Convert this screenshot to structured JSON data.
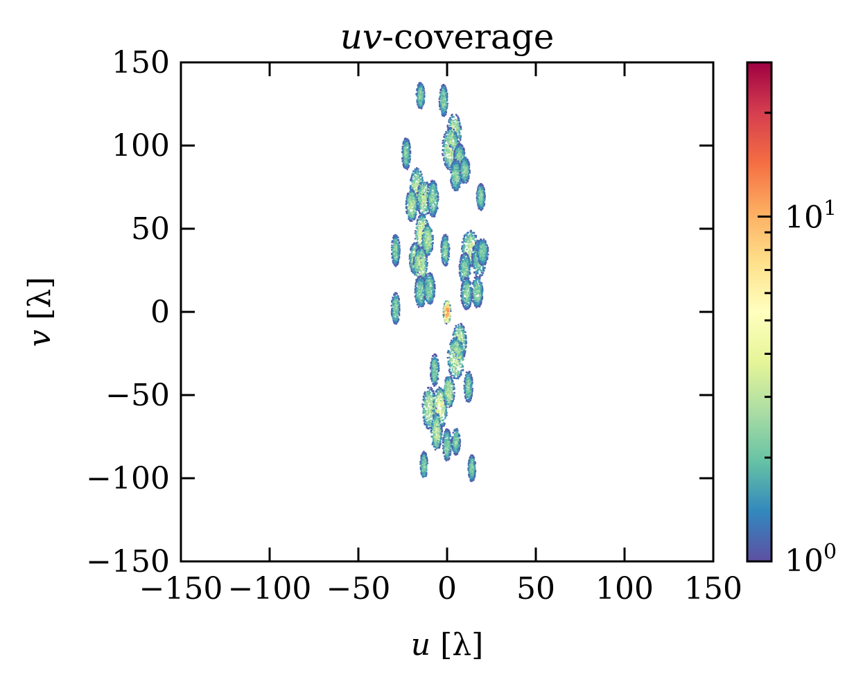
{
  "chart_data": {
    "type": "heatmap",
    "title_italic": "uv",
    "title_rest": "-coverage",
    "xlabel_var": "u",
    "xlabel_unit": "[λ]",
    "ylabel_var": "v",
    "ylabel_unit": "[λ]",
    "xlim": [
      -150,
      150
    ],
    "ylim": [
      -150,
      150
    ],
    "x_ticks": [
      -150,
      -100,
      -50,
      0,
      50,
      100,
      150
    ],
    "y_ticks": [
      -150,
      -100,
      -50,
      0,
      50,
      100,
      150
    ],
    "x_tick_labels": [
      "−150",
      "−100",
      "−50",
      "0",
      "50",
      "100",
      "150"
    ],
    "y_tick_labels": [
      "−150",
      "−100",
      "−50",
      "0",
      "50",
      "100",
      "150"
    ],
    "colormap": "Spectral_r",
    "colorbar": {
      "scale": "log",
      "range": [
        1,
        28
      ],
      "ticks": [
        {
          "base": "10",
          "exp": "0",
          "value": 1
        },
        {
          "base": "10",
          "exp": "1",
          "value": 10
        }
      ]
    },
    "clusters": [
      {
        "u": -15,
        "v": 130,
        "su": 1.5,
        "sv": 5,
        "peak": 3
      },
      {
        "u": -2,
        "v": 127,
        "su": 1.5,
        "sv": 6,
        "peak": 3
      },
      {
        "u": 4,
        "v": 108,
        "su": 2.5,
        "sv": 7,
        "peak": 4
      },
      {
        "u": 2,
        "v": 98,
        "su": 3,
        "sv": 8,
        "peak": 4
      },
      {
        "u": 7,
        "v": 93,
        "su": 2,
        "sv": 5,
        "peak": 3
      },
      {
        "u": 5,
        "v": 82,
        "su": 2,
        "sv": 6,
        "peak": 3
      },
      {
        "u": 10,
        "v": 85,
        "su": 1.8,
        "sv": 5,
        "peak": 3
      },
      {
        "u": -23,
        "v": 95,
        "su": 1.5,
        "sv": 6,
        "peak": 3
      },
      {
        "u": -17,
        "v": 74,
        "su": 2.5,
        "sv": 8,
        "peak": 4
      },
      {
        "u": -20,
        "v": 64,
        "su": 2,
        "sv": 6,
        "peak": 4
      },
      {
        "u": -13,
        "v": 68,
        "su": 2.5,
        "sv": 7,
        "peak": 4
      },
      {
        "u": -8,
        "v": 68,
        "su": 2,
        "sv": 7,
        "peak": 3
      },
      {
        "u": 19,
        "v": 69,
        "su": 1.5,
        "sv": 5,
        "peak": 3
      },
      {
        "u": -14,
        "v": 46,
        "su": 2.5,
        "sv": 8,
        "peak": 5
      },
      {
        "u": -11,
        "v": 43,
        "su": 2,
        "sv": 6,
        "peak": 4
      },
      {
        "u": -18,
        "v": 32,
        "su": 2,
        "sv": 6,
        "peak": 4
      },
      {
        "u": -15,
        "v": 28,
        "su": 2.5,
        "sv": 7,
        "peak": 4
      },
      {
        "u": -29,
        "v": 37,
        "su": 1.5,
        "sv": 6,
        "peak": 3
      },
      {
        "u": -1,
        "v": 37,
        "su": 1.5,
        "sv": 6,
        "peak": 3
      },
      {
        "u": 13,
        "v": 38,
        "su": 3,
        "sv": 7,
        "peak": 4
      },
      {
        "u": 18,
        "v": 32,
        "su": 2.5,
        "sv": 7,
        "peak": 3
      },
      {
        "u": 10,
        "v": 26,
        "su": 2,
        "sv": 6,
        "peak": 3
      },
      {
        "u": 20,
        "v": 36,
        "su": 2,
        "sv": 5,
        "peak": 3
      },
      {
        "u": 17,
        "v": 12,
        "su": 2,
        "sv": 6,
        "peak": 3
      },
      {
        "u": 11,
        "v": 11,
        "su": 2,
        "sv": 6,
        "peak": 3
      },
      {
        "u": -15,
        "v": 12,
        "su": 2,
        "sv": 6,
        "peak": 3
      },
      {
        "u": -10,
        "v": 14,
        "su": 2,
        "sv": 6,
        "peak": 3
      },
      {
        "u": -29,
        "v": 2,
        "su": 1.5,
        "sv": 6,
        "peak": 3
      },
      {
        "u": 0,
        "v": 0,
        "su": 1.3,
        "sv": 4.5,
        "peak": 16
      },
      {
        "u": 7,
        "v": -18,
        "su": 2.5,
        "sv": 7,
        "peak": 4
      },
      {
        "u": 5,
        "v": -28,
        "su": 3,
        "sv": 8,
        "peak": 4
      },
      {
        "u": 12,
        "v": -45,
        "su": 1.5,
        "sv": 6,
        "peak": 3
      },
      {
        "u": -7,
        "v": -35,
        "su": 1.5,
        "sv": 6,
        "peak": 3
      },
      {
        "u": -10,
        "v": -58,
        "su": 2.5,
        "sv": 8,
        "peak": 4
      },
      {
        "u": -4,
        "v": -58,
        "su": 2.5,
        "sv": 8,
        "peak": 5
      },
      {
        "u": 1,
        "v": -48,
        "su": 2,
        "sv": 6,
        "peak": 4
      },
      {
        "u": -6,
        "v": -72,
        "su": 2,
        "sv": 7,
        "peak": 4
      },
      {
        "u": 0,
        "v": -80,
        "su": 1.5,
        "sv": 6,
        "peak": 3
      },
      {
        "u": 5,
        "v": -78,
        "su": 1.5,
        "sv": 5,
        "peak": 3
      },
      {
        "u": -13,
        "v": -92,
        "su": 1.3,
        "sv": 5,
        "peak": 3
      },
      {
        "u": 14,
        "v": -94,
        "su": 1.3,
        "sv": 5,
        "peak": 3
      }
    ]
  }
}
